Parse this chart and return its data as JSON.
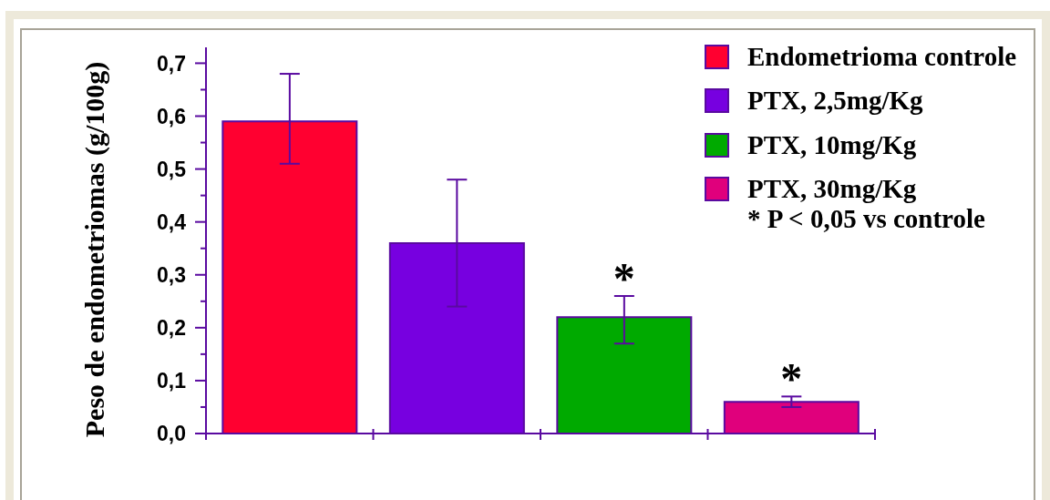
{
  "chart_data": {
    "type": "bar",
    "ylabel": "Peso de endometriomas (g/100g)",
    "categories": [
      null,
      null,
      null,
      null
    ],
    "series": [
      {
        "name": "Endometrioma controle",
        "color": "#ff0030",
        "values": [
          0.59,
          null,
          null,
          null
        ],
        "errors": [
          [
            0.51,
            0.68
          ],
          null,
          null,
          null
        ]
      },
      {
        "name": "PTX, 2,5mg/Kg",
        "color": "#7700e0",
        "values": [
          null,
          0.36,
          null,
          null
        ],
        "errors": [
          null,
          [
            0.24,
            0.48
          ],
          null,
          null
        ]
      },
      {
        "name": "PTX, 10mg/Kg",
        "color": "#00aa00",
        "values": [
          null,
          null,
          0.22,
          null
        ],
        "errors": [
          null,
          null,
          [
            0.17,
            0.26
          ],
          null
        ],
        "value_labels": [
          null,
          null,
          "*",
          null
        ]
      },
      {
        "name": "PTX, 30mg/Kg",
        "color": "#e0007c",
        "values": [
          null,
          null,
          null,
          0.06
        ],
        "errors": [
          null,
          null,
          null,
          [
            0.05,
            0.07
          ]
        ],
        "value_labels": [
          null,
          null,
          null,
          "*"
        ]
      }
    ],
    "ylim": [
      0,
      0.73
    ],
    "yticks": [
      {
        "value": 0,
        "label": "0,0"
      },
      {
        "value": 0.05,
        "label": null
      },
      {
        "value": 0.1,
        "label": "0,1"
      },
      {
        "value": 0.15,
        "label": null
      },
      {
        "value": 0.2,
        "label": "0,2"
      },
      {
        "value": 0.25,
        "label": null
      },
      {
        "value": 0.3,
        "label": "0,3"
      },
      {
        "value": 0.35,
        "label": null
      },
      {
        "value": 0.4,
        "label": "0,4"
      },
      {
        "value": 0.45,
        "label": null
      },
      {
        "value": 0.5,
        "label": "0,5"
      },
      {
        "value": 0.55,
        "label": null
      },
      {
        "value": 0.6,
        "label": "0,6"
      },
      {
        "value": 0.65,
        "label": null
      },
      {
        "value": 0.7,
        "label": "0,7"
      }
    ],
    "legend": "top right",
    "annotations": [
      "* P < 0,05 vs controle"
    ]
  }
}
